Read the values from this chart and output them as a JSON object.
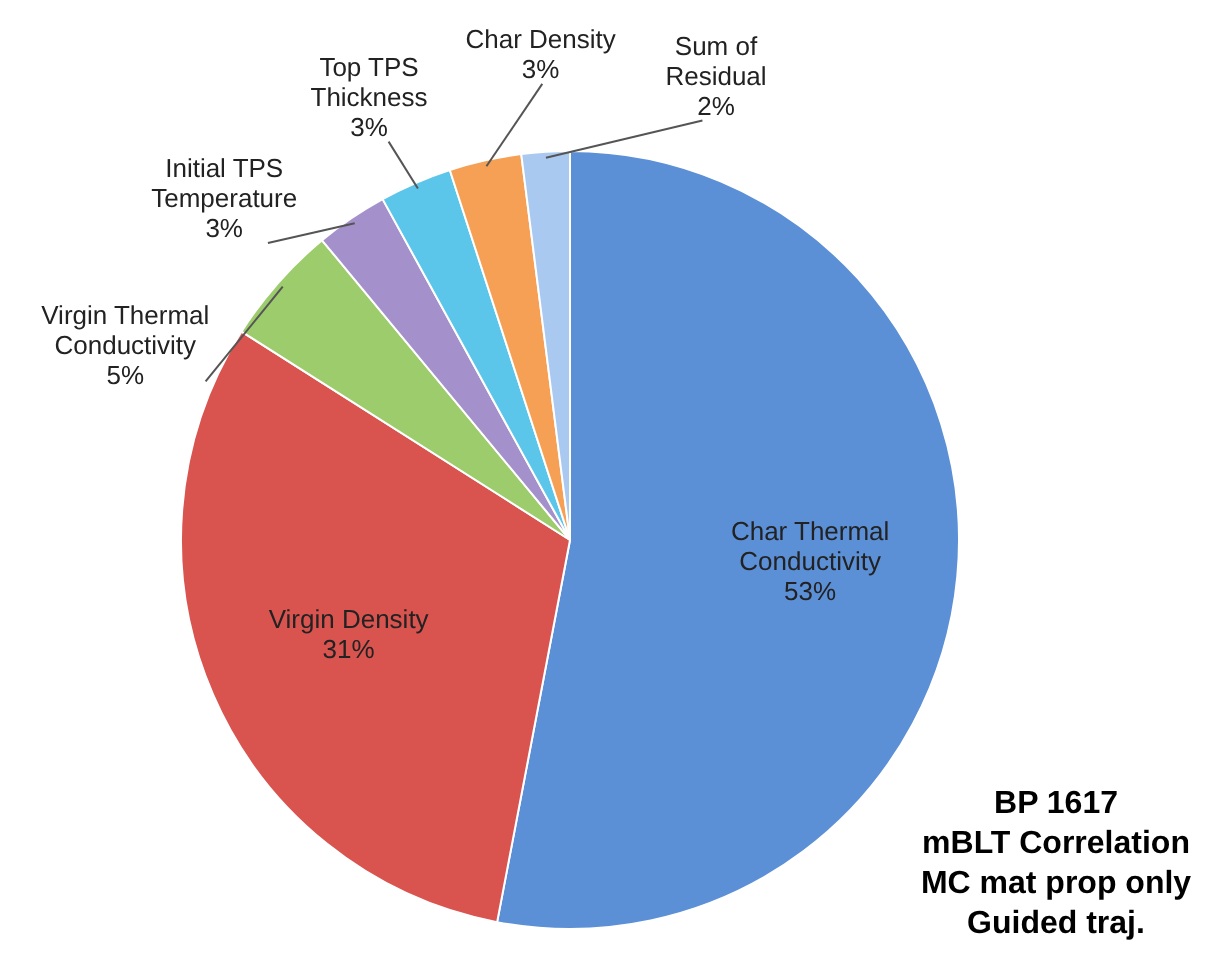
{
  "chart_data": {
    "type": "pie",
    "categories": [
      "Char Thermal Conductivity",
      "Virgin Density",
      "Virgin Thermal Conductivity",
      "Initial TPS Temperature",
      "Top TPS Thickness",
      "Char Density",
      "Sum of Residual"
    ],
    "values": [
      53,
      31,
      5,
      3,
      3,
      3,
      2
    ],
    "colors": [
      "#5b8fd6",
      "#d9534f",
      "#9ccc6c",
      "#a491cc",
      "#5cc6ea",
      "#f5a055",
      "#a9c9f0"
    ],
    "value_labels": [
      "53%",
      "31%",
      "5%",
      "3%",
      "3%",
      "3%",
      "2%"
    ],
    "annotations": [
      "BP 1617",
      "mBLT Correlation",
      "MC mat prop only",
      "Guided traj."
    ]
  }
}
